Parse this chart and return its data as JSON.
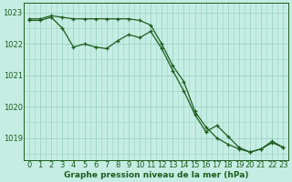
{
  "line1_x": [
    0,
    1,
    2,
    3,
    4,
    5,
    6,
    7,
    8,
    9,
    10,
    11,
    12,
    13,
    14,
    15,
    16,
    17,
    18,
    19,
    20,
    21,
    22,
    23
  ],
  "line1_y": [
    1022.8,
    1022.8,
    1022.9,
    1022.85,
    1022.8,
    1022.8,
    1022.8,
    1022.8,
    1022.8,
    1022.8,
    1022.75,
    1022.6,
    1022.0,
    1021.3,
    1020.8,
    1019.85,
    1019.35,
    1019.0,
    1018.8,
    1018.65,
    1018.55,
    1018.65,
    1018.85,
    1018.7
  ],
  "line2_x": [
    0,
    1,
    2,
    3,
    4,
    5,
    6,
    7,
    8,
    9,
    10,
    11,
    12,
    13,
    14,
    15,
    16,
    17,
    18,
    19,
    20,
    21,
    22,
    23
  ],
  "line2_y": [
    1022.75,
    1022.75,
    1022.85,
    1022.5,
    1021.9,
    1022.0,
    1021.9,
    1021.85,
    1022.1,
    1022.3,
    1022.2,
    1022.4,
    1021.85,
    1021.15,
    1020.5,
    1019.75,
    1019.2,
    1019.4,
    1019.05,
    1018.7,
    1018.55,
    1018.65,
    1018.9,
    1018.7
  ],
  "line_color": "#1e5c1e",
  "bg_color": "#c5ede3",
  "grid_color": "#9dd4c5",
  "ylim": [
    1018.3,
    1023.3
  ],
  "xlim": [
    -0.5,
    23.5
  ],
  "yticks": [
    1019,
    1020,
    1021,
    1022,
    1023
  ],
  "xticks": [
    0,
    1,
    2,
    3,
    4,
    5,
    6,
    7,
    8,
    9,
    10,
    11,
    12,
    13,
    14,
    15,
    16,
    17,
    18,
    19,
    20,
    21,
    22,
    23
  ],
  "xticklabels": [
    "0",
    "1",
    "2",
    "3",
    "4",
    "5",
    "6",
    "7",
    "8",
    "9",
    "10",
    "11",
    "12",
    "13",
    "14",
    "15",
    "16",
    "17",
    "18",
    "19",
    "20",
    "21",
    "22",
    "23"
  ],
  "xlabel": "Graphe pression niveau de la mer (hPa)",
  "marker": "+",
  "marker_size": 3.5,
  "linewidth": 0.9
}
